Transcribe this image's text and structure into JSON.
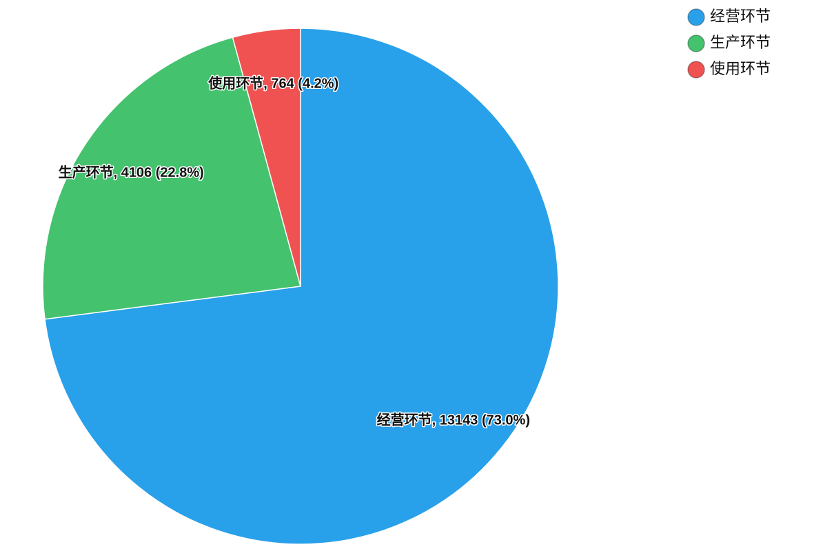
{
  "chart_data": {
    "type": "pie",
    "categories": [
      "经营环节",
      "生产环节",
      "使用环节"
    ],
    "values": [
      13143,
      4106,
      764
    ],
    "value_labels": [
      "经营环节, 13143 (73.0%)",
      "生产环节, 4106 (22.8%)",
      "使用环节, 764 (4.2%)"
    ],
    "colors": [
      "#29a0ea",
      "#44c26e",
      "#f05252"
    ],
    "legend": "top-right"
  }
}
